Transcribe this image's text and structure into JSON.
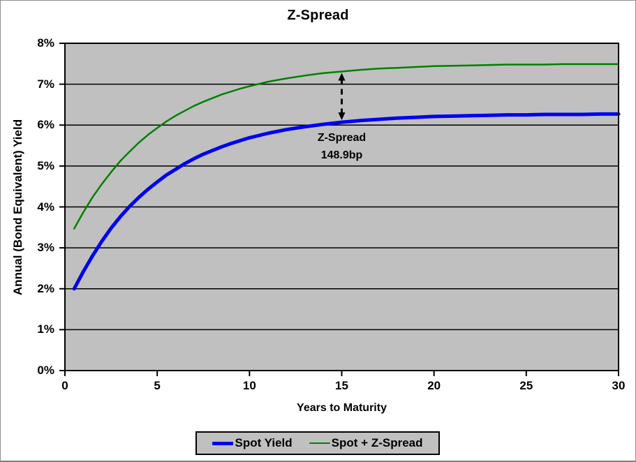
{
  "chart_data": {
    "type": "line",
    "title": "Z-Spread",
    "xlabel": "Years to Maturity",
    "ylabel": "Annual (Bond Equivalent) Yield",
    "xlim": [
      0,
      30
    ],
    "ylim": [
      0,
      8
    ],
    "x_ticks": [
      0,
      5,
      10,
      15,
      20,
      25,
      30
    ],
    "y_ticks": [
      {
        "value": 0,
        "label": "0%"
      },
      {
        "value": 1,
        "label": "1%"
      },
      {
        "value": 2,
        "label": "2%"
      },
      {
        "value": 3,
        "label": "3%"
      },
      {
        "value": 4,
        "label": "4%"
      },
      {
        "value": 5,
        "label": "5%"
      },
      {
        "value": 6,
        "label": "6%"
      },
      {
        "value": 7,
        "label": "7%"
      },
      {
        "value": 8,
        "label": "8%"
      }
    ],
    "grid": "horizontal-only",
    "plot_background": "#c0c0c0",
    "grid_color": "#000000",
    "legend_position": "bottom",
    "series": [
      {
        "name": "Spot Yield",
        "color": "#0000f0",
        "line_width": 5,
        "x": [
          0.5,
          1,
          1.5,
          2,
          2.5,
          3,
          3.5,
          4,
          4.5,
          5,
          5.5,
          6,
          6.5,
          7,
          7.5,
          8,
          8.5,
          9,
          9.5,
          10,
          11,
          12,
          13,
          14,
          15,
          16,
          17,
          18,
          19,
          20,
          21,
          22,
          23,
          24,
          25,
          26,
          27,
          28,
          29,
          30
        ],
        "y": [
          2.0,
          2.42,
          2.81,
          3.16,
          3.48,
          3.76,
          4.01,
          4.23,
          4.43,
          4.61,
          4.78,
          4.92,
          5.06,
          5.18,
          5.29,
          5.38,
          5.47,
          5.55,
          5.62,
          5.69,
          5.8,
          5.89,
          5.96,
          6.02,
          6.07,
          6.11,
          6.14,
          6.17,
          6.19,
          6.21,
          6.22,
          6.23,
          6.24,
          6.25,
          6.25,
          6.26,
          6.26,
          6.26,
          6.27,
          6.27
        ]
      },
      {
        "name": "Spot + Z-Spread",
        "color": "#008000",
        "line_width": 2.5,
        "x": [
          0.5,
          1,
          1.5,
          2,
          2.5,
          3,
          3.5,
          4,
          4.5,
          5,
          5.5,
          6,
          6.5,
          7,
          7.5,
          8,
          8.5,
          9,
          9.5,
          10,
          11,
          12,
          13,
          14,
          15,
          16,
          17,
          18,
          19,
          20,
          21,
          22,
          23,
          24,
          25,
          26,
          27,
          28,
          29,
          30
        ],
        "y": [
          3.47,
          3.87,
          4.24,
          4.56,
          4.85,
          5.12,
          5.35,
          5.57,
          5.76,
          5.93,
          6.09,
          6.23,
          6.35,
          6.47,
          6.57,
          6.66,
          6.75,
          6.82,
          6.89,
          6.95,
          7.06,
          7.14,
          7.21,
          7.27,
          7.31,
          7.35,
          7.38,
          7.4,
          7.42,
          7.44,
          7.45,
          7.46,
          7.47,
          7.48,
          7.48,
          7.48,
          7.49,
          7.49,
          7.49,
          7.49
        ]
      }
    ],
    "annotation": {
      "lines": [
        "Z-Spread",
        "148.9bp"
      ],
      "arrow_x": 15,
      "arrow_between_series": [
        "Spot + Z-Spread",
        "Spot Yield"
      ],
      "arrow_style": "dashed-double-headed"
    }
  }
}
